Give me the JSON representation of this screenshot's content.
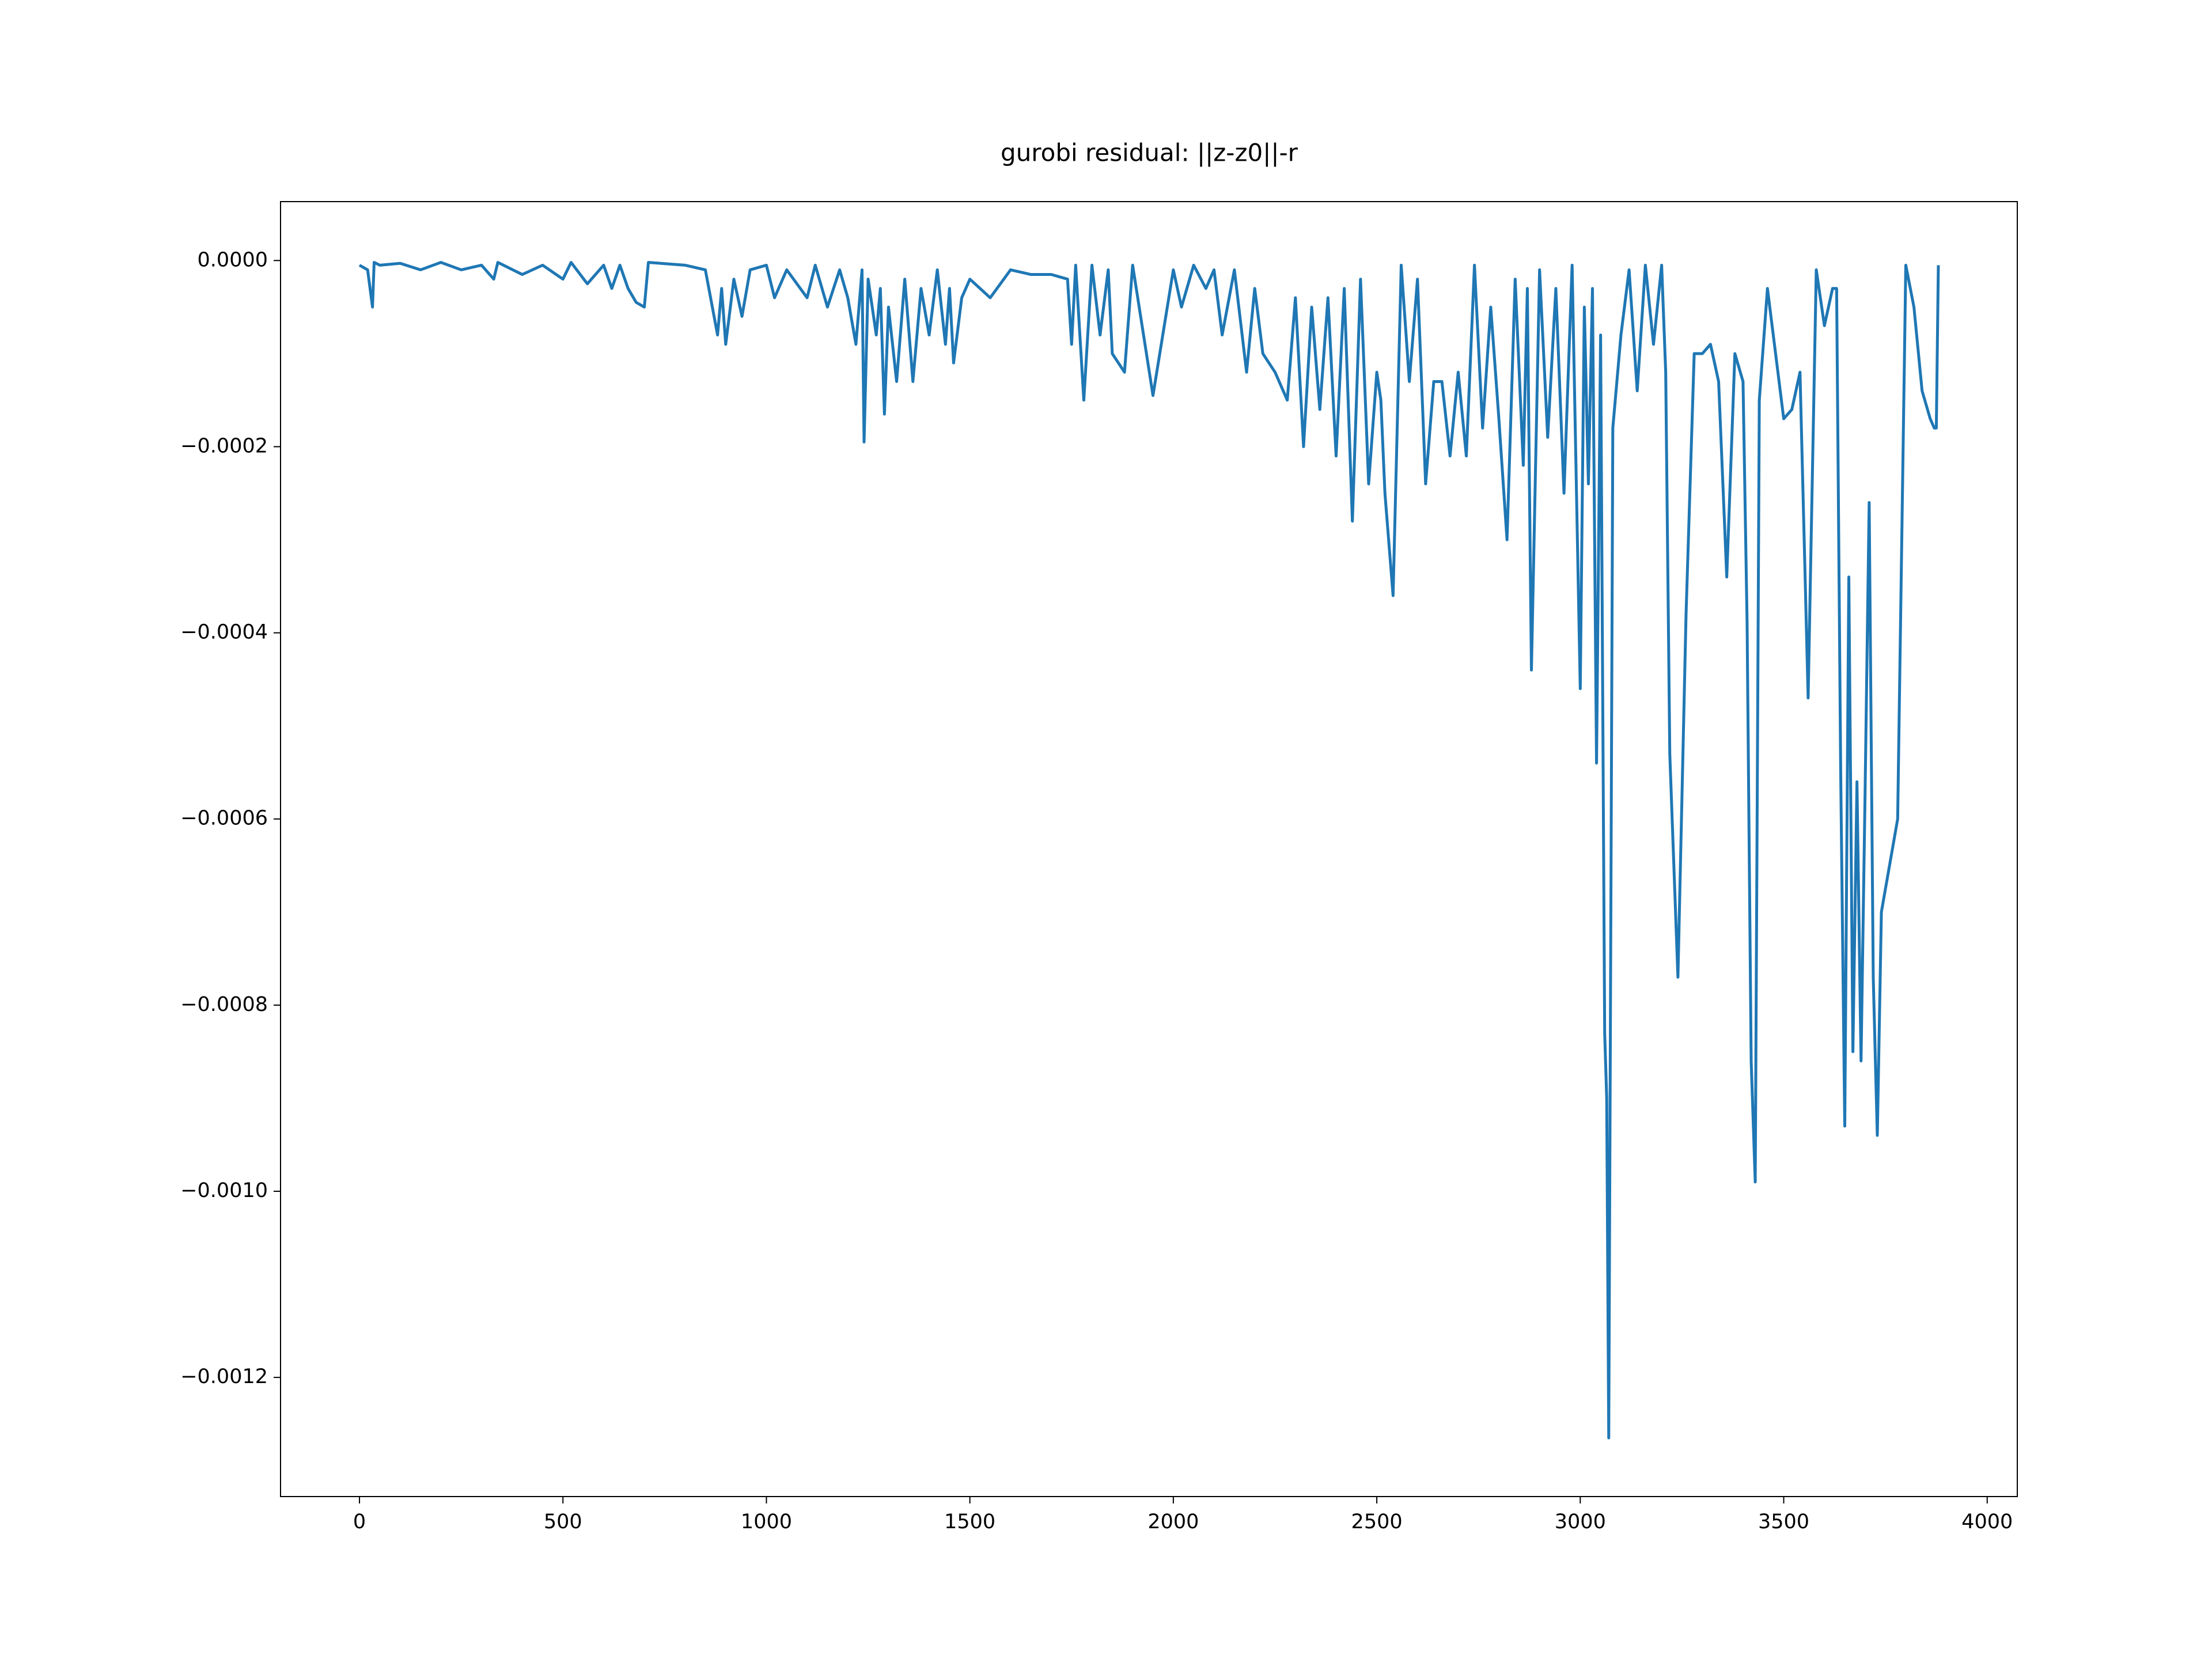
{
  "chart_data": {
    "type": "line",
    "title": "gurobi residual: ||z-z0||-r",
    "x": [
      0,
      20,
      32,
      36,
      50,
      100,
      150,
      200,
      250,
      300,
      330,
      340,
      400,
      450,
      500,
      520,
      560,
      600,
      620,
      640,
      660,
      680,
      700,
      710,
      800,
      850,
      880,
      890,
      900,
      920,
      940,
      960,
      1000,
      1020,
      1050,
      1100,
      1120,
      1150,
      1180,
      1200,
      1220,
      1235,
      1240,
      1250,
      1270,
      1280,
      1290,
      1300,
      1320,
      1340,
      1360,
      1380,
      1400,
      1420,
      1440,
      1450,
      1460,
      1480,
      1500,
      1550,
      1600,
      1650,
      1700,
      1740,
      1750,
      1760,
      1780,
      1800,
      1820,
      1840,
      1850,
      1880,
      1900,
      1950,
      2000,
      2020,
      2050,
      2080,
      2100,
      2120,
      2150,
      2180,
      2200,
      2220,
      2250,
      2280,
      2300,
      2320,
      2340,
      2360,
      2380,
      2400,
      2420,
      2440,
      2460,
      2480,
      2500,
      2510,
      2520,
      2540,
      2560,
      2580,
      2600,
      2620,
      2640,
      2660,
      2680,
      2700,
      2720,
      2740,
      2760,
      2780,
      2800,
      2820,
      2840,
      2860,
      2870,
      2880,
      2900,
      2920,
      2940,
      2960,
      2980,
      3000,
      3010,
      3020,
      3030,
      3040,
      3050,
      3060,
      3065,
      3070,
      3080,
      3100,
      3120,
      3140,
      3160,
      3180,
      3200,
      3210,
      3220,
      3240,
      3260,
      3280,
      3300,
      3320,
      3340,
      3360,
      3380,
      3400,
      3410,
      3420,
      3430,
      3440,
      3460,
      3480,
      3500,
      3520,
      3540,
      3560,
      3580,
      3600,
      3620,
      3630,
      3640,
      3650,
      3660,
      3670,
      3680,
      3690,
      3700,
      3710,
      3720,
      3730,
      3740,
      3760,
      3780,
      3800,
      3820,
      3840,
      3860,
      3870,
      3875,
      3880
    ],
    "series": [
      {
        "color": "#1f77b4",
        "values": [
          -5e-06,
          -1e-05,
          -5e-05,
          -2e-06,
          -5e-06,
          -3e-06,
          -1e-05,
          -2e-06,
          -1e-05,
          -5e-06,
          -2e-05,
          -2e-06,
          -1.5e-05,
          -5e-06,
          -2e-05,
          -2e-06,
          -2.5e-05,
          -5e-06,
          -3e-05,
          -5e-06,
          -3e-05,
          -4.5e-05,
          -5e-05,
          -2e-06,
          -5e-06,
          -1e-05,
          -8e-05,
          -3e-05,
          -9e-05,
          -2e-05,
          -6e-05,
          -1e-05,
          -5e-06,
          -4e-05,
          -1e-05,
          -4e-05,
          -5e-06,
          -5e-05,
          -1e-05,
          -4e-05,
          -9e-05,
          -1e-05,
          -0.000195,
          -2e-05,
          -8e-05,
          -3e-05,
          -0.000165,
          -5e-05,
          -0.00013,
          -2e-05,
          -0.00013,
          -3e-05,
          -8e-05,
          -1e-05,
          -9e-05,
          -3e-05,
          -0.00011,
          -4e-05,
          -2e-05,
          -4e-05,
          -1e-05,
          -1.5e-05,
          -1.5e-05,
          -2e-05,
          -9e-05,
          -5e-06,
          -0.00015,
          -5e-06,
          -8e-05,
          -1e-05,
          -0.0001,
          -0.00012,
          -5e-06,
          -0.000145,
          -1e-05,
          -5e-05,
          -5e-06,
          -3e-05,
          -1e-05,
          -8e-05,
          -1e-05,
          -0.00012,
          -3e-05,
          -0.0001,
          -0.00012,
          -0.00015,
          -4e-05,
          -0.0002,
          -5e-05,
          -0.00016,
          -4e-05,
          -0.00021,
          -3e-05,
          -0.00028,
          -2e-05,
          -0.00024,
          -0.00012,
          -0.00015,
          -0.00025,
          -0.00036,
          -5e-06,
          -0.00013,
          -2e-05,
          -0.00024,
          -0.00013,
          -0.00013,
          -0.00021,
          -0.00012,
          -0.00021,
          -5e-06,
          -0.00018,
          -5e-05,
          -0.00017,
          -0.0003,
          -2e-05,
          -0.00022,
          -3e-05,
          -0.00044,
          -1e-05,
          -0.00019,
          -3e-05,
          -0.00025,
          -5e-06,
          -0.00046,
          -5e-05,
          -0.00024,
          -3e-05,
          -0.00054,
          -8e-05,
          -0.00083,
          -0.0009,
          -0.001265,
          -0.00018,
          -8e-05,
          -1e-05,
          -0.00014,
          -5e-06,
          -9e-05,
          -5e-06,
          -0.00012,
          -0.00053,
          -0.00077,
          -0.00038,
          -0.0001,
          -0.0001,
          -9e-05,
          -0.00013,
          -0.00034,
          -0.0001,
          -0.00013,
          -0.00039,
          -0.00086,
          -0.00099,
          -0.00015,
          -3e-05,
          -0.0001,
          -0.00017,
          -0.00016,
          -0.00012,
          -0.00047,
          -1e-05,
          -7e-05,
          -3e-05,
          -3e-05,
          -0.00055,
          -0.00093,
          -0.00034,
          -0.00085,
          -0.00056,
          -0.00086,
          -0.00057,
          -0.00026,
          -0.00077,
          -0.00094,
          -0.0007,
          -0.00065,
          -0.0006,
          -5e-06,
          -5e-05,
          -0.00014,
          -0.00017,
          -0.00018,
          -0.00018,
          -5e-06
        ]
      }
    ],
    "xlim": [
      -194,
      4074
    ],
    "ylim": [
      -0.001328,
      6.33e-05
    ],
    "xticks": [
      0,
      500,
      1000,
      1500,
      2000,
      2500,
      3000,
      3500,
      4000
    ],
    "yticks": [
      {
        "value": 0,
        "label": "0.0000"
      },
      {
        "value": -0.0002,
        "label": "−0.0002"
      },
      {
        "value": -0.0004,
        "label": "−0.0004"
      },
      {
        "value": -0.0006,
        "label": "−0.0006"
      },
      {
        "value": -0.0008,
        "label": "−0.0008"
      },
      {
        "value": -0.001,
        "label": "−0.0010"
      },
      {
        "value": -0.0012,
        "label": "−0.0012"
      }
    ]
  }
}
